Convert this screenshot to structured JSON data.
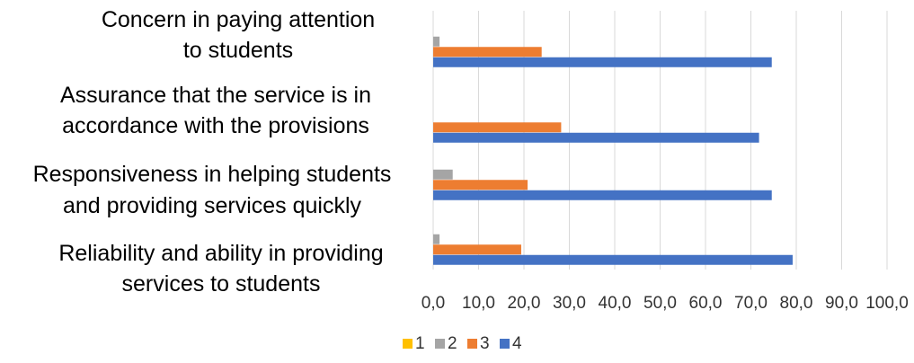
{
  "chart_data": {
    "type": "bar",
    "orientation": "horizontal",
    "categories": [
      [
        "Concern in paying attention",
        "to students"
      ],
      [
        "Assurance that the service is in",
        "accordance with the provisions"
      ],
      [
        "Responsiveness in helping students",
        "and providing services quickly"
      ],
      [
        "Reliability and ability in providing",
        "services to students"
      ]
    ],
    "series": [
      {
        "name": "1",
        "color": "#FFC000",
        "values": [
          0.0,
          0.0,
          0.0,
          0.0
        ]
      },
      {
        "name": "2",
        "color": "#A5A5A5",
        "values": [
          1.4,
          0.0,
          4.3,
          1.4
        ]
      },
      {
        "name": "3",
        "color": "#ED7D31",
        "values": [
          23.9,
          28.2,
          20.8,
          19.4
        ]
      },
      {
        "name": "4",
        "color": "#4472C4",
        "values": [
          74.6,
          71.8,
          74.6,
          79.2
        ]
      }
    ],
    "x_ticks": [
      "0,0",
      "10,0",
      "20,0",
      "30,0",
      "40,0",
      "50,0",
      "60,0",
      "70,0",
      "80,0",
      "90,0",
      "100,0"
    ],
    "xlim": [
      0,
      100
    ],
    "grid": true,
    "legend_position": "bottom"
  }
}
